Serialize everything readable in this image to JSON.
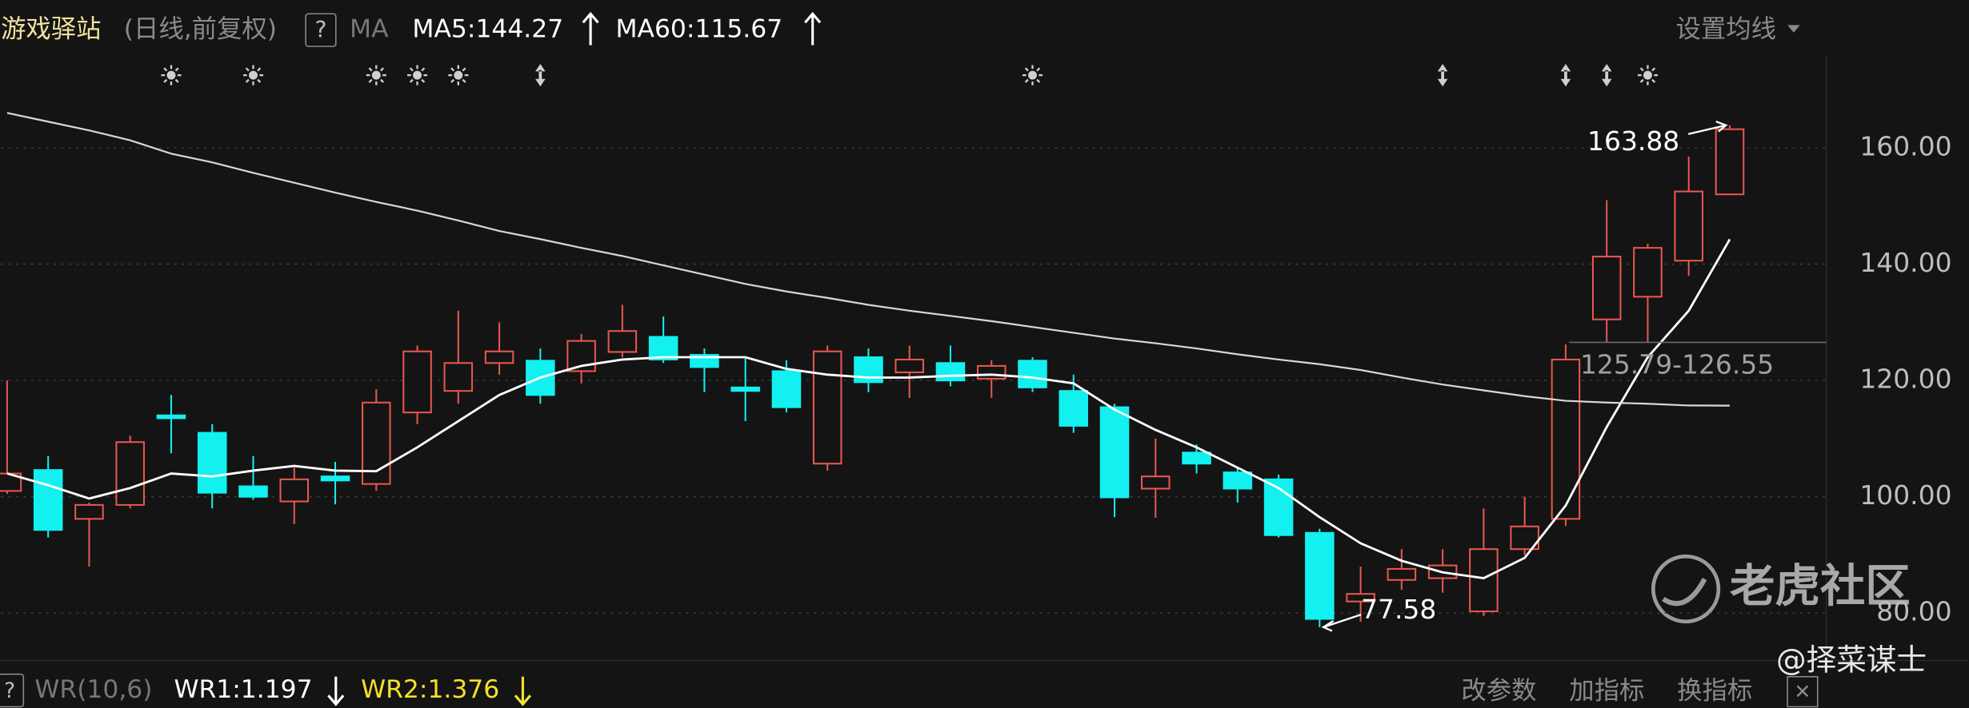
{
  "chart_data": {
    "type": "candlestick",
    "title": "游戏驿站",
    "subtitle": "(日线,前复权)",
    "help": "?",
    "indicator": "MA",
    "settings": "设置均线",
    "ylim": [
      72.3,
      176.8
    ],
    "yticks": [
      {
        "value": 80,
        "label": "80.00"
      },
      {
        "value": 100,
        "label": "100.00"
      },
      {
        "value": 120,
        "label": "120.00"
      },
      {
        "value": 140,
        "label": "140.00"
      },
      {
        "value": 160,
        "label": "160.00"
      }
    ],
    "grid": true,
    "up_color": "#e8574f",
    "down_color": "#12f0f0",
    "candles": {
      "open": [
        101,
        104.6,
        96.2,
        98.6,
        114,
        111,
        101.8,
        99.2,
        103.5,
        102.2,
        114.5,
        118.2,
        123,
        123.4,
        121.6,
        124.9,
        127.5,
        124.4,
        118.8,
        121.6,
        105.7,
        124,
        121.4,
        123,
        120.3,
        123.4,
        118.2,
        115.4,
        101.4,
        107.6,
        104.2,
        103,
        93.8,
        82,
        85.7,
        86,
        80.3,
        91,
        96.2,
        130.5,
        134.4,
        140.6,
        152
      ],
      "high": [
        120,
        107,
        99,
        110.5,
        117.5,
        112.5,
        107,
        105,
        106,
        118.5,
        126,
        132,
        130,
        125.5,
        128,
        133,
        131,
        125.5,
        124,
        123.5,
        126,
        125.5,
        126,
        126,
        123.5,
        124,
        121,
        116,
        110,
        109,
        105,
        103.8,
        94.5,
        88,
        91,
        91,
        98,
        100,
        126.2,
        151,
        143.5,
        158.5,
        163.88
      ],
      "low": [
        100.5,
        93,
        88,
        98,
        107.5,
        98,
        99.5,
        95.3,
        98.7,
        101,
        112.5,
        116,
        121,
        116,
        119.5,
        124,
        123,
        118,
        113,
        114.5,
        104.5,
        118,
        117,
        119,
        117,
        118,
        111,
        96.5,
        96.4,
        104,
        99,
        93,
        77.58,
        78.5,
        84,
        83.5,
        79.5,
        90,
        95,
        126.5,
        126.5,
        138,
        152
      ],
      "close": [
        104,
        94.3,
        98.6,
        109.4,
        113.5,
        100.7,
        100,
        103,
        102.8,
        116.2,
        125,
        123,
        125,
        117.5,
        126.8,
        128.5,
        123.6,
        122.3,
        118.2,
        115.4,
        125,
        119.7,
        123.6,
        120,
        122.5,
        118.8,
        112.2,
        99.9,
        103.5,
        105.7,
        101.4,
        93.4,
        79,
        83.3,
        87.6,
        88.2,
        91,
        94.9,
        123.6,
        141.3,
        142.8,
        152.5,
        163.2
      ]
    },
    "series": [
      {
        "name": "MA5:144.27",
        "color": "#ffffff",
        "values": [
          104,
          102,
          99.7,
          101.5,
          104,
          103.5,
          104.5,
          105.3,
          104.5,
          104.4,
          108.5,
          113,
          117.5,
          120.5,
          122.5,
          123.6,
          124,
          124,
          124,
          122,
          121,
          120.5,
          120.5,
          120.8,
          121,
          120.5,
          119.5,
          115,
          111.5,
          108.5,
          105,
          101.5,
          96.5,
          92,
          89,
          87,
          86,
          89.5,
          98.5,
          112,
          124,
          132,
          144.27
        ]
      },
      {
        "name": "MA60:115.67",
        "color": "#d8d8d8",
        "values": [
          166,
          164.5,
          163,
          161.3,
          159,
          157.5,
          155.7,
          154,
          152.3,
          150.7,
          149.2,
          147.5,
          145.7,
          144.3,
          142.8,
          141.4,
          139.8,
          138.2,
          136.6,
          135.3,
          134.2,
          133,
          132,
          131.1,
          130.2,
          129.2,
          128.2,
          127.2,
          126.4,
          125.5,
          124.5,
          123.6,
          122.8,
          121.8,
          120.5,
          119.3,
          118.3,
          117.3,
          116.5,
          116.2,
          116,
          115.7,
          115.67
        ]
      }
    ],
    "annotations": [
      {
        "label": "163.88",
        "value": 163.88
      },
      {
        "label": "77.58",
        "value": 77.58
      }
    ],
    "range_annotation": {
      "label": "125.79-126.55",
      "low": 125.79,
      "high": 126.55
    },
    "bottom_bar": {
      "help": "?",
      "indicator": "WR(10,6)",
      "wr1": "WR1:1.197",
      "wr2": "WR2:1.376",
      "buttons": [
        "改参数",
        "加指标",
        "换指标"
      ],
      "close": "✕"
    },
    "watermark": {
      "brand": "老虎社区",
      "author": "@择菜谋士"
    }
  }
}
